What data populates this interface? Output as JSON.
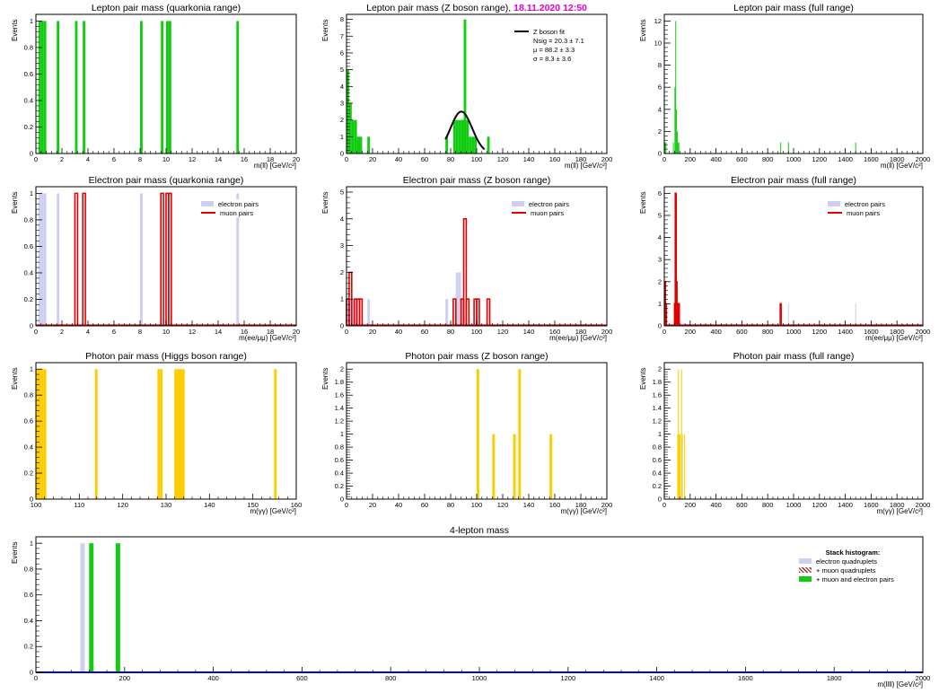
{
  "colors": {
    "electron": "#cccfef",
    "muon_line": "#e00000",
    "lepton": "#11cc11",
    "photon": "#ffcc00",
    "fit": "#000000",
    "four_lepton_muon": "#9c4a4a"
  },
  "chart_data": [
    {
      "id": "p1",
      "type": "bar",
      "title": "Lepton pair mass (quarkonia range)",
      "xlabel": "m(ll) [GeV/c²]",
      "ylabel": "Events",
      "xlim": [
        0,
        20
      ],
      "ylim": [
        0,
        1.05
      ],
      "xticks": [
        0,
        2,
        4,
        6,
        8,
        10,
        12,
        14,
        16,
        18,
        20
      ],
      "yticks": [
        0,
        0.2,
        0.4,
        0.6,
        0.8,
        1
      ],
      "bin_width": 0.2,
      "series": [
        {
          "style": "fill",
          "color": "#11cc11",
          "x": [
            0.3,
            0.5,
            0.7,
            1.7,
            3.1,
            3.7,
            8.1,
            9.7,
            10.1,
            10.3,
            15.5
          ],
          "values": [
            1,
            1,
            1,
            1,
            1,
            1,
            1,
            1,
            1,
            1,
            1
          ]
        }
      ]
    },
    {
      "id": "p2",
      "type": "bar",
      "title": "Lepton pair mass (Z boson range), ",
      "title_stamp": "18.11.2020 12:50",
      "xlabel": "m(ll) [GeV/c²]",
      "ylabel": "Events",
      "xlim": [
        0,
        200
      ],
      "ylim": [
        0,
        8.3
      ],
      "xticks": [
        0,
        20,
        40,
        60,
        80,
        100,
        120,
        140,
        160,
        180,
        200
      ],
      "yticks": [
        0,
        1,
        2,
        3,
        4,
        5,
        6,
        7,
        8
      ],
      "bin_width": 2,
      "series": [
        {
          "style": "fill",
          "color": "#11cc11",
          "x": [
            1,
            3,
            5,
            7,
            9,
            11,
            17,
            77,
            83,
            85,
            87,
            89,
            91,
            93,
            95,
            97,
            99,
            109
          ],
          "values": [
            5,
            3,
            2,
            2,
            1,
            1,
            1,
            1,
            2,
            2,
            2,
            2,
            8,
            2,
            1,
            1,
            1,
            1
          ]
        }
      ],
      "fit": {
        "mu": 88.2,
        "sigma": 8.3,
        "amp": 2.5,
        "range": [
          76,
          106
        ]
      },
      "legend": [
        {
          "kind": "line",
          "label": "Z boson fit"
        },
        {
          "kind": "text",
          "label": "Nsig = 20.3 ± 7.1"
        },
        {
          "kind": "text",
          "label": "μ = 88.2 ± 3.3"
        },
        {
          "kind": "text",
          "label": "σ = 8.3 ± 3.6"
        }
      ]
    },
    {
      "id": "p3",
      "type": "bar",
      "title": "Lepton pair mass (full range)",
      "xlabel": "m(ll) [GeV/c²]",
      "ylabel": "Events",
      "xlim": [
        0,
        2000
      ],
      "ylim": [
        0,
        12.6
      ],
      "xticks": [
        0,
        200,
        400,
        600,
        800,
        1000,
        1200,
        1400,
        1600,
        1800,
        2000
      ],
      "yticks": [
        0,
        2,
        4,
        6,
        8,
        10,
        12
      ],
      "bin_width": 6,
      "series": [
        {
          "style": "fill",
          "color": "#11cc11",
          "x": [
            5,
            12,
            70,
            82,
            88,
            94,
            100,
            106,
            112,
            900,
            960,
            1480
          ],
          "values": [
            1,
            1,
            1,
            6,
            12,
            4,
            2,
            1,
            1,
            1,
            1,
            1
          ]
        }
      ]
    },
    {
      "id": "p4",
      "type": "bar",
      "title": "Electron pair mass (quarkonia range)",
      "xlabel": "m(ee/μμ) [GeV/c²]",
      "ylabel": "Events",
      "xlim": [
        0,
        20
      ],
      "ylim": [
        0,
        1.05
      ],
      "xticks": [
        0,
        2,
        4,
        6,
        8,
        10,
        12,
        14,
        16,
        18,
        20
      ],
      "yticks": [
        0,
        0.2,
        0.4,
        0.6,
        0.8,
        1
      ],
      "bin_width": 0.2,
      "series": [
        {
          "style": "fill",
          "color": "#cccfef",
          "name": "electron pairs",
          "x": [
            0.3,
            0.5,
            0.7,
            1.7,
            8.1,
            15.5
          ],
          "values": [
            1,
            1,
            1,
            1,
            1,
            1
          ]
        },
        {
          "style": "step",
          "color": "#e00000",
          "name": "muon pairs",
          "x": [
            3.1,
            3.7,
            9.7,
            10.1,
            10.3
          ],
          "values": [
            1,
            1,
            1,
            1,
            1
          ]
        }
      ],
      "legend": [
        {
          "kind": "fill",
          "color": "#cccfef",
          "label": "electron pairs"
        },
        {
          "kind": "line",
          "color": "#e00000",
          "label": "muon pairs"
        }
      ]
    },
    {
      "id": "p5",
      "type": "bar",
      "title": "Electron pair mass (Z boson range)",
      "xlabel": "m(ee/μμ) [GeV/c²]",
      "ylabel": "Events",
      "xlim": [
        0,
        200
      ],
      "ylim": [
        0,
        5.2
      ],
      "xticks": [
        0,
        20,
        40,
        60,
        80,
        100,
        120,
        140,
        160,
        180,
        200
      ],
      "yticks": [
        0,
        1,
        2,
        3,
        4,
        5
      ],
      "bin_width": 2,
      "series": [
        {
          "style": "fill",
          "color": "#cccfef",
          "name": "electron pairs",
          "x": [
            1,
            3,
            5,
            7,
            17,
            77,
            85,
            87,
            89
          ],
          "values": [
            1,
            1,
            1,
            1,
            1,
            1,
            2,
            2,
            1
          ]
        },
        {
          "style": "step",
          "color": "#e00000",
          "name": "muon pairs",
          "x": [
            1,
            3,
            7,
            9,
            11,
            83,
            89,
            91,
            93,
            99,
            101,
            109
          ],
          "values": [
            1,
            2,
            1,
            1,
            1,
            1,
            1,
            4,
            1,
            1,
            1,
            1
          ]
        }
      ],
      "legend": [
        {
          "kind": "fill",
          "color": "#cccfef",
          "label": "electron pairs"
        },
        {
          "kind": "line",
          "color": "#e00000",
          "label": "muon pairs"
        }
      ]
    },
    {
      "id": "p6",
      "type": "bar",
      "title": "Electron pair mass (full range)",
      "xlabel": "m(ee/μμ) [GeV/c²]",
      "ylabel": "Events",
      "xlim": [
        0,
        2000
      ],
      "ylim": [
        0,
        6.3
      ],
      "xticks": [
        0,
        200,
        400,
        600,
        800,
        1000,
        1200,
        1400,
        1600,
        1800,
        2000
      ],
      "yticks": [
        0,
        1,
        2,
        3,
        4,
        5,
        6
      ],
      "bin_width": 6,
      "series": [
        {
          "style": "fill",
          "color": "#cccfef",
          "name": "electron pairs",
          "x": [
            5,
            88,
            94,
            960,
            1480
          ],
          "values": [
            1,
            3,
            1,
            1,
            1
          ]
        },
        {
          "style": "step",
          "color": "#e00000",
          "name": "muon pairs",
          "x": [
            5,
            12,
            82,
            88,
            94,
            100,
            106,
            112,
            900
          ],
          "values": [
            2,
            1,
            1,
            6,
            2,
            1,
            1,
            1,
            1
          ]
        }
      ],
      "legend": [
        {
          "kind": "fill",
          "color": "#cccfef",
          "label": "electron pairs"
        },
        {
          "kind": "line",
          "color": "#e00000",
          "label": "muon pairs"
        }
      ]
    },
    {
      "id": "p7",
      "type": "bar",
      "title": "Photon pair mass (Higgs boson range)",
      "xlabel": "m(γγ) [GeV/c²]",
      "ylabel": "Events",
      "xlim": [
        100,
        160
      ],
      "ylim": [
        0,
        1.05
      ],
      "xticks": [
        100,
        110,
        120,
        130,
        140,
        150,
        160
      ],
      "yticks": [
        0,
        0.2,
        0.4,
        0.6,
        0.8,
        1
      ],
      "bin_width": 0.6,
      "series": [
        {
          "style": "fill",
          "color": "#ffcc00",
          "x": [
            100.3,
            100.9,
            101.5,
            102.1,
            113.9,
            128.3,
            128.9,
            132.2,
            132.8,
            133.4,
            134.0,
            155.2
          ],
          "values": [
            1,
            1,
            1,
            1,
            1,
            1,
            1,
            1,
            1,
            1,
            1,
            1
          ]
        }
      ]
    },
    {
      "id": "p8",
      "type": "bar",
      "title": "Photon pair mass (Z boson range)",
      "xlabel": "m(γγ) [GeV/c²]",
      "ylabel": "Events",
      "xlim": [
        0,
        200
      ],
      "ylim": [
        0,
        2.1
      ],
      "xticks": [
        0,
        20,
        40,
        60,
        80,
        100,
        120,
        140,
        160,
        180,
        200
      ],
      "yticks": [
        0,
        0.2,
        0.4,
        0.6,
        0.8,
        1,
        1.2,
        1.4,
        1.6,
        1.8,
        2
      ],
      "bin_width": 2,
      "series": [
        {
          "style": "fill",
          "color": "#ffcc00",
          "x": [
            101,
            113,
            129,
            133,
            157
          ],
          "values": [
            2,
            1,
            1,
            2,
            1
          ]
        }
      ]
    },
    {
      "id": "p9",
      "type": "bar",
      "title": "Photon pair mass (full range)",
      "xlabel": "m(γγ) [GeV/c²]",
      "ylabel": "Events",
      "xlim": [
        0,
        2000
      ],
      "ylim": [
        0,
        2.1
      ],
      "xticks": [
        0,
        200,
        400,
        600,
        800,
        1000,
        1200,
        1400,
        1600,
        1800,
        2000
      ],
      "yticks": [
        0,
        0.2,
        0.4,
        0.6,
        0.8,
        1,
        1.2,
        1.4,
        1.6,
        1.8,
        2
      ],
      "bin_width": 6,
      "series": [
        {
          "style": "fill",
          "color": "#ffcc00",
          "x": [
            103,
            109,
            115,
            121,
            133,
            139,
            157
          ],
          "values": [
            1,
            2,
            1,
            1,
            2,
            1,
            1
          ]
        }
      ]
    },
    {
      "id": "p10",
      "type": "bar",
      "title": "4-lepton mass",
      "xlabel": "m(llll) [GeV/c²]",
      "ylabel": "Events",
      "xlim": [
        0,
        2000
      ],
      "ylim": [
        0,
        1.05
      ],
      "xticks": [
        0,
        200,
        400,
        600,
        800,
        1000,
        1200,
        1400,
        1600,
        1800,
        2000
      ],
      "yticks": [
        0,
        0.2,
        0.4,
        0.6,
        0.8,
        1
      ],
      "bin_width": 10,
      "series": [
        {
          "style": "fill",
          "color": "#cccfef",
          "name": "electron quadruplets",
          "x": [
            105
          ],
          "values": [
            1
          ]
        },
        {
          "style": "fill",
          "color": "#11cc11",
          "name": "+ muon and electron pairs",
          "x": [
            125,
            185
          ],
          "values": [
            1,
            1
          ]
        }
      ],
      "legend": [
        {
          "kind": "header",
          "label": "Stack histogram:"
        },
        {
          "kind": "fill",
          "color": "#cccfef",
          "label": "electron quadruplets"
        },
        {
          "kind": "hatch",
          "color": "#9c4a4a",
          "label": "+ muon quadruplets"
        },
        {
          "kind": "fill",
          "color": "#11cc11",
          "label": "+ muon and electron pairs"
        }
      ]
    }
  ]
}
